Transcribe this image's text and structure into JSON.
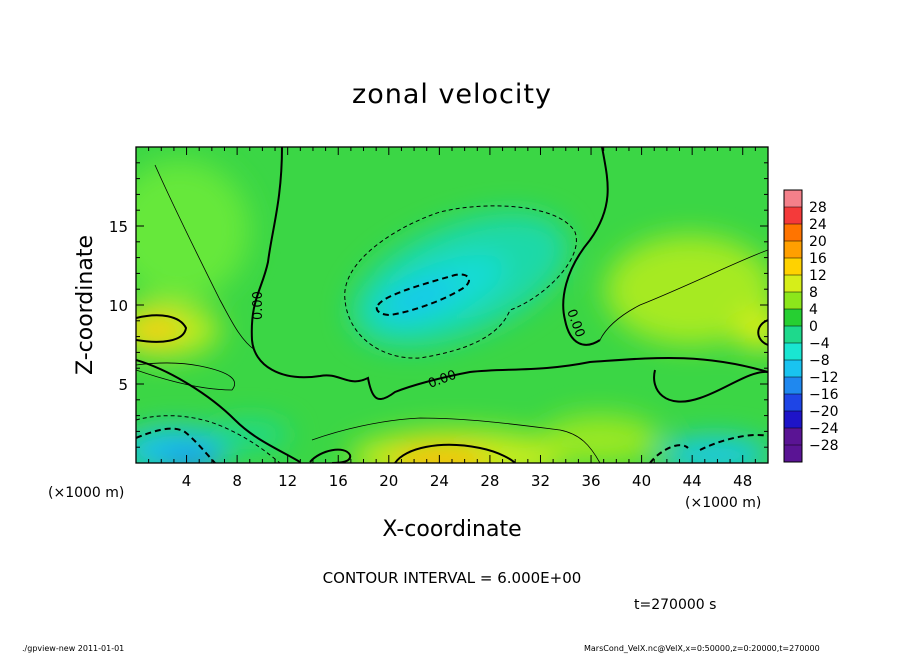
{
  "chart_data": {
    "type": "heatmap",
    "title": "zonal velocity",
    "xlabel": "X-coordinate",
    "ylabel": "Z-coordinate",
    "x_unit_left": "(×1000 m)",
    "x_unit_right": "(×1000 m)",
    "xlim": [
      0,
      50
    ],
    "ylim": [
      0,
      20
    ],
    "x_ticks": [
      4,
      8,
      12,
      16,
      20,
      24,
      28,
      32,
      36,
      40,
      44,
      48
    ],
    "y_ticks": [
      5,
      10,
      15
    ],
    "contour_label": "0.00",
    "contour_interval_text": "CONTOUR INTERVAL = 6.000E+00",
    "time_text": "t=270000 s",
    "colorbar": {
      "labels": [
        "28",
        "24",
        "20",
        "16",
        "12",
        "8",
        "4",
        "0",
        "−4",
        "−8",
        "−12",
        "−16",
        "−20",
        "−24",
        "−28"
      ],
      "colors": [
        "#f4808a",
        "#f43a3a",
        "#ff7400",
        "#ff9f00",
        "#ffd200",
        "#d6ee19",
        "#8ce61b",
        "#26cf32",
        "#1ed98c",
        "#19e6d2",
        "#19c3f0",
        "#1f88ef",
        "#1e45e6",
        "#1e14c8",
        "#5a1494"
      ]
    },
    "footer_left": "./gpview-new   2011-01-01",
    "footer_right": "MarsCond_VelX.nc@VelX,x=0:50000,z=0:20000,t=270000"
  }
}
